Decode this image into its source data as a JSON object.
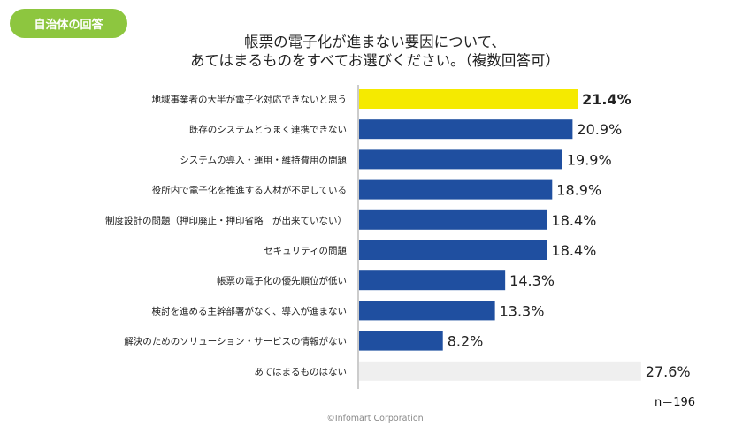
{
  "badge": {
    "label": "自治体の回答"
  },
  "title": {
    "line1": "帳票の電子化が進まない要因について、",
    "line2": "あてはまるものをすべてお選びください。（複数回答可）"
  },
  "sample_size": "n＝196",
  "copyright": "©Infomart Corporation",
  "colors": {
    "highlight": "#f5ea00",
    "bar": "#1f4fa0",
    "none_bar": "#efefef",
    "badge": "#8dc63f"
  },
  "chart_data": {
    "type": "bar",
    "orientation": "horizontal",
    "categories": [
      "地域事業者の大半が電子化対応できないと思う",
      "既存のシステムとうまく連携できない",
      "システムの導入・運用・維持費用の問題",
      "役所内で電子化を推進する人材が不足している",
      "制度設計の問題（押印廃止・押印省略　が出来ていない）",
      "セキュリティの問題",
      "帳票の電子化の優先順位が低い",
      "検討を進める主幹部署がなく、導入が進まない",
      "解決のためのソリューション・サービスの情報がない",
      "あてはまるものはない"
    ],
    "values": [
      21.4,
      20.9,
      19.9,
      18.9,
      18.4,
      18.4,
      14.3,
      13.3,
      8.2,
      27.6
    ],
    "value_labels": [
      "21.4%",
      "20.9%",
      "19.9%",
      "18.9%",
      "18.4%",
      "18.4%",
      "14.3%",
      "13.3%",
      "8.2%",
      "27.6%"
    ],
    "highlight_index": 0,
    "none_index": 9,
    "unit": "%"
  }
}
